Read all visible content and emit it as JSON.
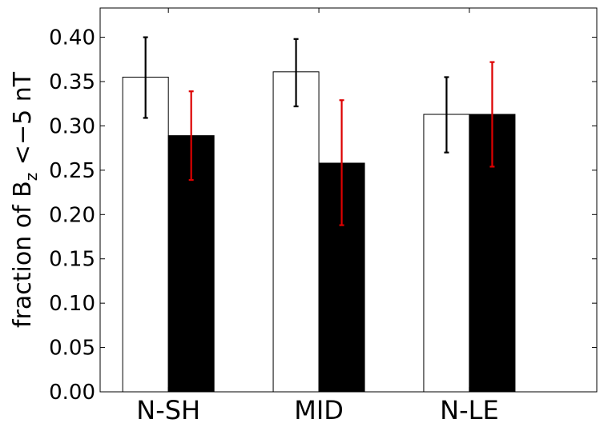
{
  "chart_data": {
    "type": "bar",
    "categories": [
      "N-SH",
      "MID",
      "N-LE"
    ],
    "series": [
      {
        "fill": "#ffffff",
        "errorbar_color": "#000000",
        "values": [
          0.355,
          0.361,
          0.313
        ],
        "error_low": [
          0.309,
          0.322,
          0.27
        ],
        "error_high": [
          0.4,
          0.398,
          0.355
        ]
      },
      {
        "fill": "#000000",
        "errorbar_color": "#dd0000",
        "values": [
          0.289,
          0.258,
          0.313
        ],
        "error_low": [
          0.239,
          0.188,
          0.254
        ],
        "error_high": [
          0.339,
          0.329,
          0.372
        ]
      }
    ],
    "ylabel_main": "fraction of B",
    "ylabel_sub": "z",
    "ylabel_tail": " <−5 nT",
    "ylim": [
      0,
      0.433
    ],
    "yticks": [
      "0.00",
      "0.05",
      "0.10",
      "0.15",
      "0.20",
      "0.25",
      "0.30",
      "0.35",
      "0.40"
    ],
    "ytick_values": [
      0,
      0.05,
      0.1,
      0.15,
      0.2,
      0.25,
      0.3,
      0.35,
      0.4
    ],
    "xlim": [
      -0.15,
      3.15
    ],
    "grid": false,
    "legend": "none"
  }
}
